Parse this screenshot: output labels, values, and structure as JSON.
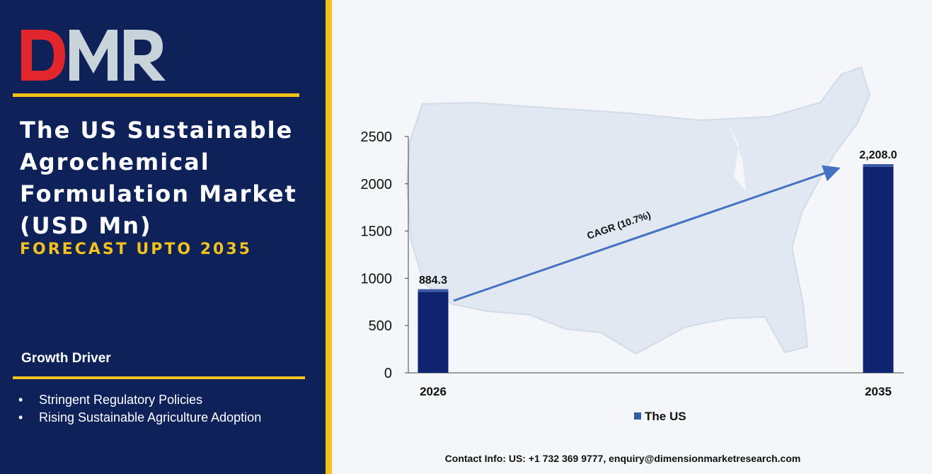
{
  "brand": {
    "logo_text": "DMR",
    "logo_colors": {
      "d": "#e3262c",
      "m": "#c8d3da",
      "r": "#c8d3da"
    }
  },
  "header": {
    "title": "The US Sustainable Agrochemical Formulation Market (USD Mn)",
    "subtitle": "FORECAST UPTO 2035"
  },
  "growth": {
    "heading": "Growth Driver",
    "drivers": [
      "Stringent Regulatory Policies",
      "Rising Sustainable Agriculture Adoption"
    ]
  },
  "contact": "Contact Info: US: +1 732 369 9777, enquiry@dimensionmarketresearch.com",
  "colors": {
    "panel": "#0e2158",
    "accent": "#f2c21b",
    "bar": "#0f2470",
    "arrow": "#4472c4"
  },
  "chart_data": {
    "type": "bar",
    "categories": [
      "2026",
      "2035"
    ],
    "series": [
      {
        "name": "The US",
        "values": [
          884.3,
          2208.0
        ]
      }
    ],
    "data_labels": [
      "884.3",
      "2,208.0"
    ],
    "yticks": [
      0,
      500,
      1000,
      1500,
      2000,
      2500
    ],
    "ylim": [
      0,
      2500
    ],
    "annotation": "CAGR (10.7%)",
    "legend": "bottom-center",
    "grid": false,
    "background_image": "us-map-silhouette"
  }
}
